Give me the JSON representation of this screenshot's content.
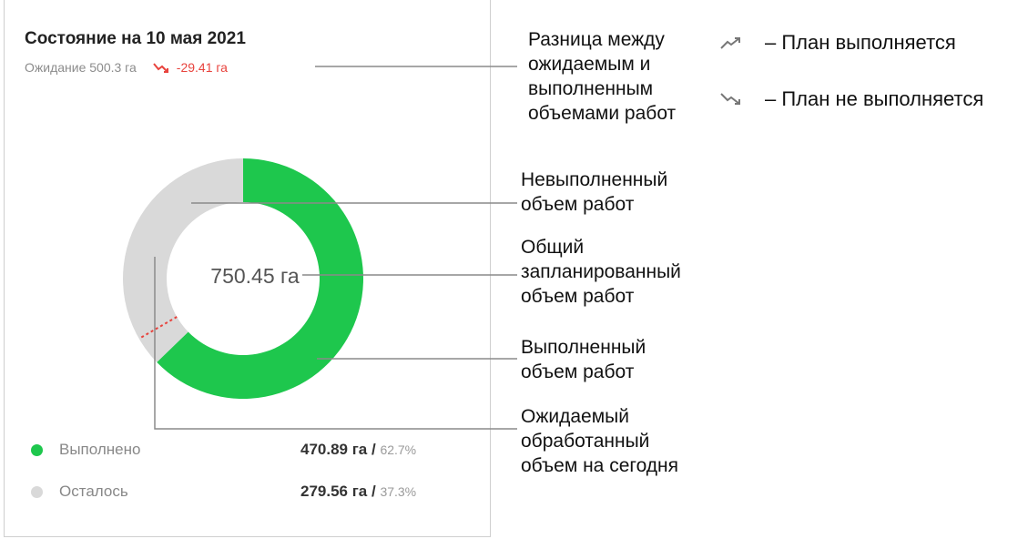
{
  "card": {
    "title": "Состояние на 10 мая 2021",
    "expected_label": "Ожидание 500.3 га",
    "delta": "-29.41 га",
    "center_total": "750.45 га"
  },
  "chart_data": {
    "type": "pie",
    "title": "Состояние на 10 мая 2021",
    "total_label": "750.45 га",
    "slices": [
      {
        "name": "Выполнено",
        "value": 470.89,
        "percent": 62.7,
        "color": "#1ec74d"
      },
      {
        "name": "Осталось",
        "value": 279.56,
        "percent": 37.3,
        "color": "#d9d9d9"
      }
    ],
    "expected_value": 500.3,
    "expected_marker_color": "#e8433d",
    "donut": true
  },
  "legend": [
    {
      "label": "Выполнено",
      "value": "470.89 га",
      "sep": " / ",
      "percent": "62.7%",
      "color": "#1ec74d"
    },
    {
      "label": "Осталось",
      "value": "279.56 га",
      "sep": " / ",
      "percent": "37.3%",
      "color": "#d9d9d9"
    }
  ],
  "annotations": {
    "difference": [
      "Разница между",
      "ожидаемым и",
      "выполненным",
      "объемами работ"
    ],
    "remaining": [
      "Невыполненный",
      "объем работ"
    ],
    "total": [
      "Общий",
      "запланированный",
      "объем работ"
    ],
    "done": [
      "Выполненный",
      "объем работ"
    ],
    "expected": [
      "Ожидаемый",
      "обработанный",
      "объем на сегодня"
    ]
  },
  "hints": {
    "up": {
      "icon": "trend-up-icon",
      "text": "– План выполняется"
    },
    "down": {
      "icon": "trend-down-icon",
      "text": "– План не выполняется"
    }
  }
}
